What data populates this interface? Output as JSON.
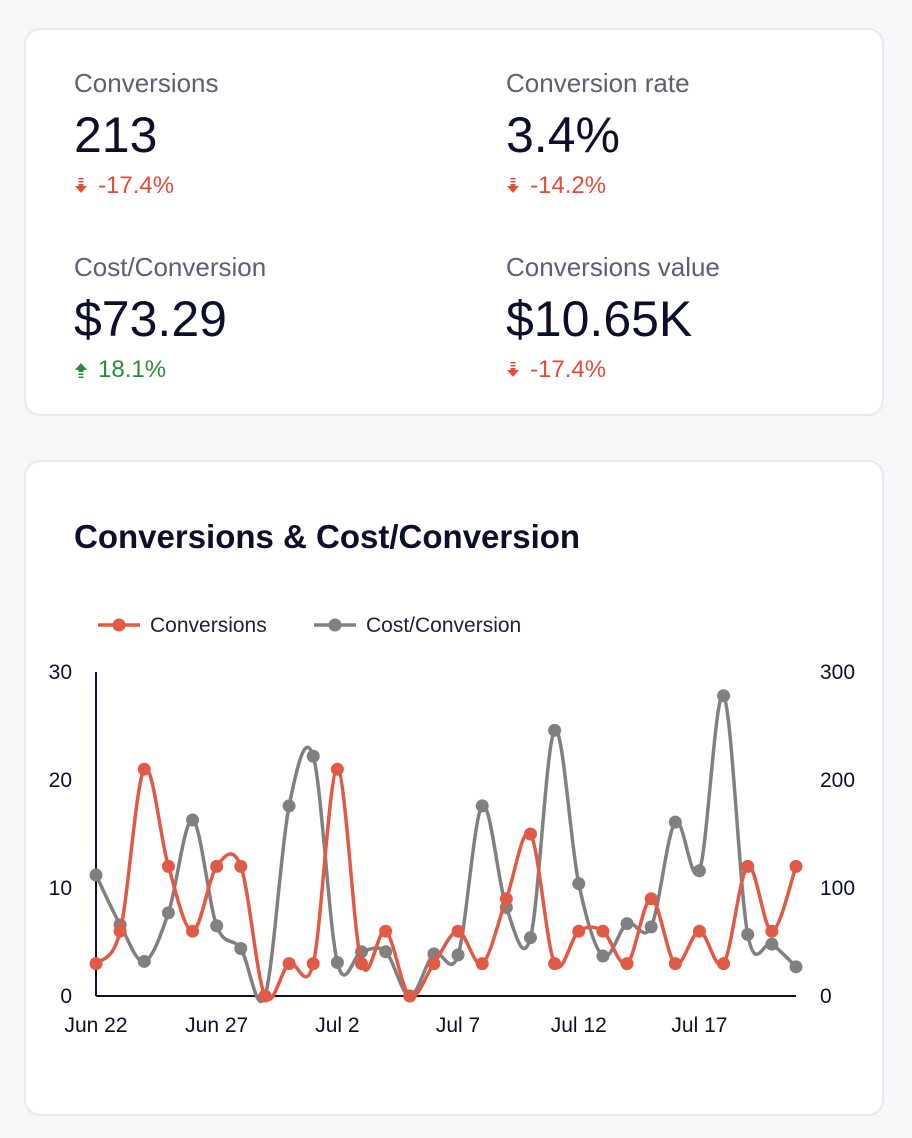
{
  "colors": {
    "negative": "#e34a3b",
    "positive": "#2e8b3a",
    "conversions_line": "#e05a45",
    "cost_line": "#808080"
  },
  "kpis": [
    {
      "label": "Conversions",
      "value": "213",
      "delta": "-17.4%",
      "direction": "down"
    },
    {
      "label": "Conversion rate",
      "value": "3.4%",
      "delta": "-14.2%",
      "direction": "down"
    },
    {
      "label": "Cost/Conversion",
      "value": "$73.29",
      "delta": "18.1%",
      "direction": "up"
    },
    {
      "label": "Conversions value",
      "value": "$10.65K",
      "delta": "-17.4%",
      "direction": "down"
    }
  ],
  "chart_data": {
    "type": "line",
    "title": "Conversions & Cost/Conversion",
    "x": [
      "Jun 22",
      "Jun 23",
      "Jun 24",
      "Jun 25",
      "Jun 26",
      "Jun 27",
      "Jun 28",
      "Jun 29",
      "Jun 30",
      "Jul 1",
      "Jul 2",
      "Jul 3",
      "Jul 4",
      "Jul 5",
      "Jul 6",
      "Jul 7",
      "Jul 8",
      "Jul 9",
      "Jul 10",
      "Jul 11",
      "Jul 12",
      "Jul 13",
      "Jul 14",
      "Jul 15",
      "Jul 16",
      "Jul 17",
      "Jul 18",
      "Jul 19",
      "Jul 20",
      "Jul 21"
    ],
    "x_tick_labels": [
      "Jun 22",
      "Jun 27",
      "Jul 2",
      "Jul 7",
      "Jul 12",
      "Jul 17"
    ],
    "x_tick_indices": [
      0,
      5,
      10,
      15,
      20,
      25
    ],
    "series": [
      {
        "name": "Conversions",
        "axis": "left",
        "values": [
          3,
          6,
          21,
          12,
          6,
          12,
          12,
          0,
          3,
          3,
          21,
          3,
          6,
          0,
          3,
          6,
          3,
          9,
          15,
          3,
          6,
          6,
          3,
          9,
          3,
          6,
          3,
          12,
          6,
          12
        ]
      },
      {
        "name": "Cost/Conversion",
        "axis": "right",
        "values": [
          112,
          66,
          32,
          77,
          163,
          65,
          44,
          0,
          176,
          222,
          31,
          41,
          41,
          0,
          39,
          38,
          176,
          82,
          54,
          246,
          104,
          37,
          67,
          64,
          161,
          116,
          278,
          57,
          48,
          27
        ]
      }
    ],
    "y_left": {
      "min": 0,
      "max": 30,
      "ticks": [
        "0",
        "10",
        "20",
        "30"
      ]
    },
    "y_right": {
      "min": 0,
      "max": 300,
      "ticks": [
        "0",
        "100",
        "200",
        "300"
      ]
    },
    "legend_position": "top-left"
  }
}
